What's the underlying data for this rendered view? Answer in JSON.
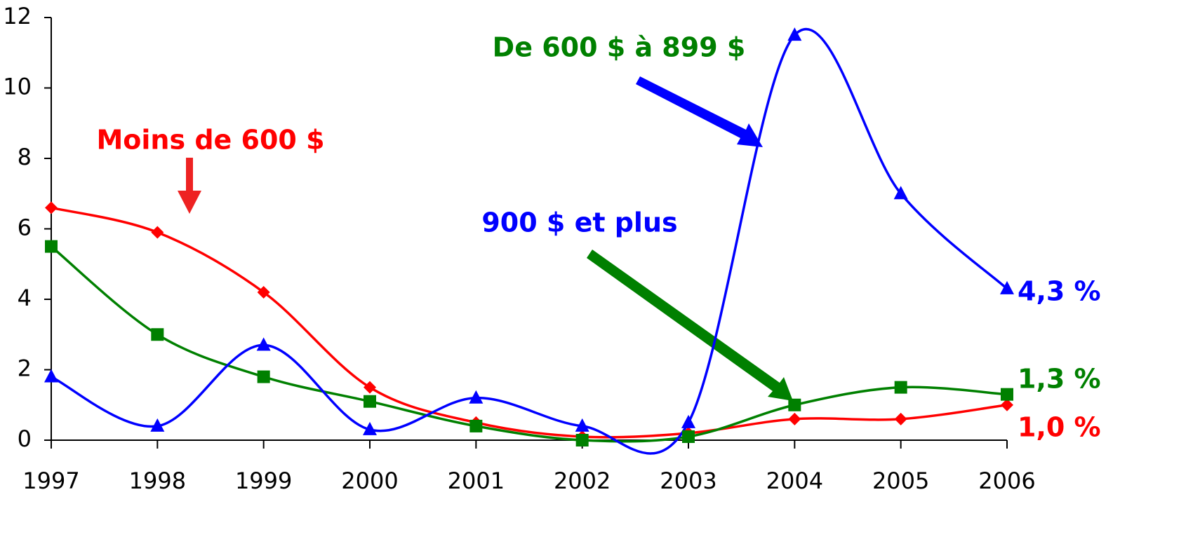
{
  "chart_data": {
    "type": "line",
    "x": [
      1997,
      1998,
      1999,
      2000,
      2001,
      2002,
      2003,
      2004,
      2005,
      2006
    ],
    "xticks": [
      1997,
      1998,
      1999,
      2000,
      2001,
      2002,
      2003,
      2004,
      2005,
      2006
    ],
    "xlim": [
      1997,
      2006
    ],
    "ylim": [
      0,
      12
    ],
    "yticks": [
      0,
      2,
      4,
      6,
      8,
      10,
      12
    ],
    "smooth": true,
    "series": [
      {
        "name": "Moins de 600 $",
        "color": "#ff0000",
        "marker": "diamond",
        "values": [
          6.6,
          5.9,
          4.2,
          1.5,
          0.5,
          0.1,
          0.2,
          0.6,
          0.6,
          1.0
        ],
        "value_labels": [
          null,
          null,
          null,
          null,
          null,
          null,
          null,
          null,
          null,
          "1,0 %"
        ]
      },
      {
        "name": "De 600 $ à 899 $",
        "color": "#008000",
        "marker": "square",
        "values": [
          5.5,
          3.0,
          1.8,
          1.1,
          0.4,
          0.0,
          0.1,
          1.0,
          1.5,
          1.3
        ],
        "value_labels": [
          null,
          null,
          null,
          null,
          null,
          null,
          null,
          null,
          null,
          "1,3 %"
        ]
      },
      {
        "name": "900 $ et plus",
        "color": "#0000ff",
        "marker": "triangle",
        "values": [
          1.8,
          0.4,
          2.7,
          0.3,
          1.2,
          0.4,
          0.5,
          11.5,
          7.0,
          4.3
        ],
        "value_labels": [
          null,
          null,
          null,
          null,
          null,
          null,
          null,
          null,
          null,
          "4,3 %"
        ]
      }
    ]
  }
}
